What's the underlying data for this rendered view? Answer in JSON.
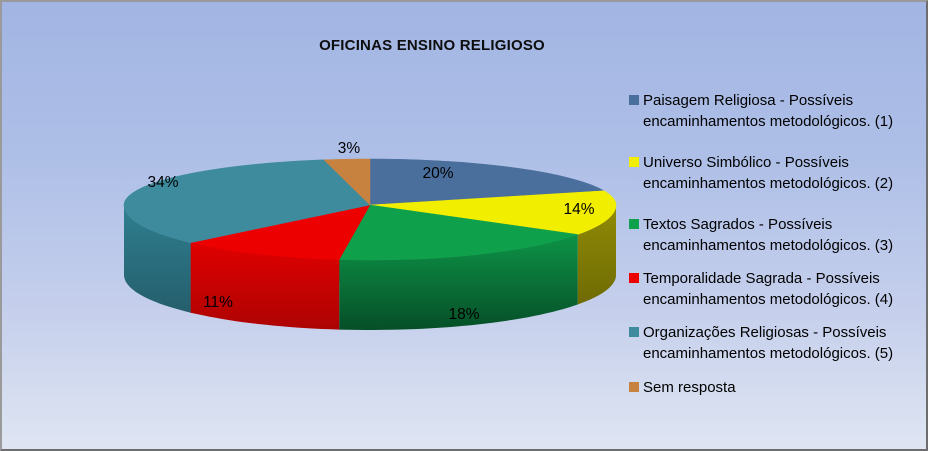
{
  "title": "OFICINAS ENSINO RELIGIOSO",
  "colors": {
    "background_top": "#a2b5e3",
    "background_bottom": "#dfe5f2",
    "border": "#8a8a8a",
    "title_color": "#0d0d0d",
    "label_color": "#000000"
  },
  "chart_data": {
    "type": "pie",
    "is_3d": true,
    "title": "OFICINAS ENSINO RELIGIOSO",
    "legend_position": "right",
    "start_angle_deg": 0,
    "direction": "clockwise",
    "slices": [
      {
        "label": "Paisagem Religiosa - Possíveis encaminhamentos metodológicos. (1)",
        "value": 20,
        "pct_label": "20%",
        "color": "#4a6f9d",
        "side_colors": [
          "#36537a",
          "#2c4566"
        ]
      },
      {
        "label": "Universo Simbólico - Possíveis encaminhamentos metodológicos. (2)",
        "value": 14,
        "pct_label": "14%",
        "color": "#f2ee00",
        "side_colors": [
          "#908b06",
          "#6f6b04"
        ]
      },
      {
        "label": "Textos Sagrados - Possíveis encaminhamentos metodológicos. (3)",
        "value": 18,
        "pct_label": "18%",
        "color": "#0fa04c",
        "side_colors": [
          "#0d9346",
          "#064f28"
        ]
      },
      {
        "label": "Temporalidade Sagrada - Possíveis encaminhamentos metodológicos. (4)",
        "value": 11,
        "pct_label": "11%",
        "color": "#ec0000",
        "side_colors": [
          "#e00000",
          "#ad0303"
        ]
      },
      {
        "label": "Organizações Religiosas - Possíveis encaminhamentos metodológicos. (5)",
        "value": 34,
        "pct_label": "34%",
        "color": "#3e8b9d",
        "side_colors": [
          "#2f7f90",
          "#255e6c"
        ]
      },
      {
        "label": "Sem resposta",
        "value": 3,
        "pct_label": "3%",
        "color": "#c8823f",
        "side_colors": [
          "#8f5c28",
          "#7a4e21"
        ]
      }
    ]
  },
  "legend": {
    "items": [
      {
        "lines": [
          "Paisagem Religiosa - Possíveis",
          "encaminhamentos metodológicos. (1)"
        ],
        "color": "#4a6f9d"
      },
      {
        "lines": [
          "Universo Simbólico - Possíveis",
          "encaminhamentos metodológicos. (2)"
        ],
        "color": "#f2ee00"
      },
      {
        "lines": [
          "Textos Sagrados - Possíveis",
          "encaminhamentos metodológicos. (3)"
        ],
        "color": "#0fa04c"
      },
      {
        "lines": [
          "Temporalidade Sagrada - Possíveis",
          "encaminhamentos metodológicos. (4)"
        ],
        "color": "#ec0000"
      },
      {
        "lines": [
          "Organizações Religiosas - Possíveis",
          "encaminhamentos metodológicos. (5)"
        ],
        "color": "#3e8b9d"
      },
      {
        "lines": [
          "Sem resposta"
        ],
        "color": "#c8823f"
      }
    ]
  }
}
